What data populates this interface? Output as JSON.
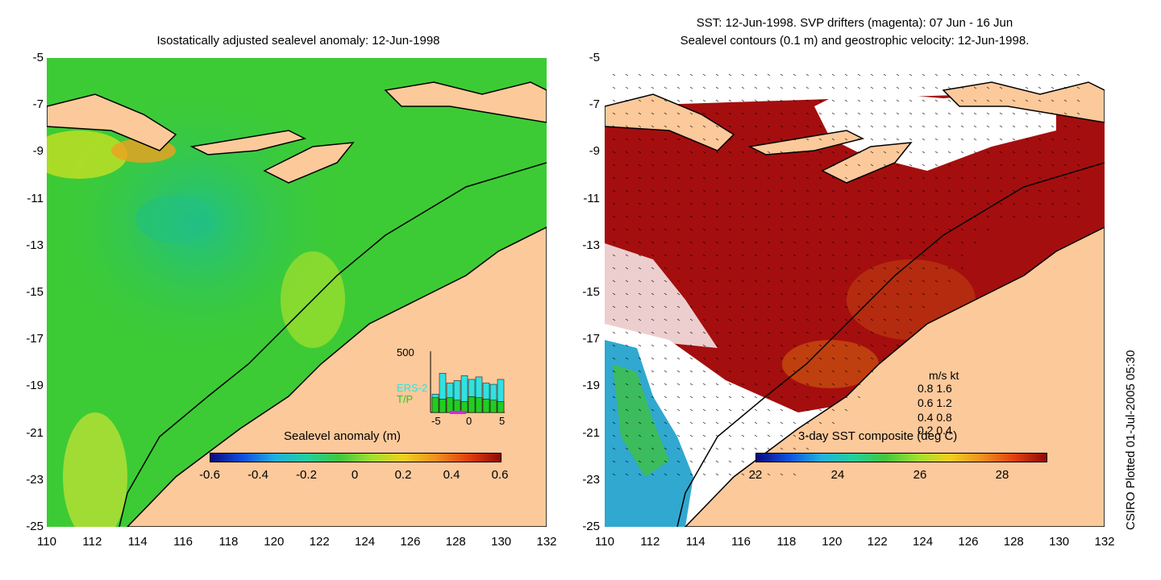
{
  "left_panel": {
    "title": "Isostatically adjusted sealevel anomaly: 12-Jun-1998",
    "colorbar": {
      "label": "Sealevel anomaly (m)",
      "ticks": [
        "-0.6",
        "-0.4",
        "-0.2",
        "0",
        "0.2",
        "0.4",
        "0.6"
      ]
    },
    "inset": {
      "ymax_label": "500",
      "series": [
        "ERS-2",
        "T/P"
      ],
      "xticks": [
        "-5",
        "0",
        "5"
      ],
      "series_colors": {
        "ERS-2": "#33e0e0",
        "T/P": "#22cc22"
      },
      "ers2_counts": [
        150,
        320,
        240,
        260,
        300,
        270,
        290,
        240,
        230,
        270
      ],
      "tp_counts": [
        120,
        110,
        120,
        100,
        90,
        130,
        120,
        110,
        100,
        90
      ]
    }
  },
  "right_panel": {
    "title_line1": "SST: 12-Jun-1998. SVP drifters (magenta): 07 Jun - 16 Jun",
    "title_line2": "Sealevel contours (0.1 m) and geostrophic velocity: 12-Jun-1998.",
    "colorbar": {
      "label": "3-day SST composite (deg C)",
      "ticks": [
        "22",
        "24",
        "26",
        "28"
      ]
    },
    "velocity_legend": {
      "header": "m/s  kt",
      "rows": [
        "0.8  1.6",
        "0.6  1.2",
        "0.4  0.8",
        "0.2  0.4"
      ]
    }
  },
  "axes": {
    "y_ticks": [
      "-5",
      "-7",
      "-9",
      "-11",
      "-13",
      "-15",
      "-17",
      "-19",
      "-21",
      "-23",
      "-25"
    ],
    "x_ticks": [
      "110",
      "112",
      "114",
      "116",
      "118",
      "120",
      "122",
      "124",
      "126",
      "128",
      "130",
      "132"
    ]
  },
  "side_label": "CSIRO Plotted 01-Jul-2005 05:30",
  "colors": {
    "land": "#fcc99b",
    "ocean_green": "#2fc832",
    "sst_warm": "#a50e0e",
    "coast": "#000000"
  }
}
